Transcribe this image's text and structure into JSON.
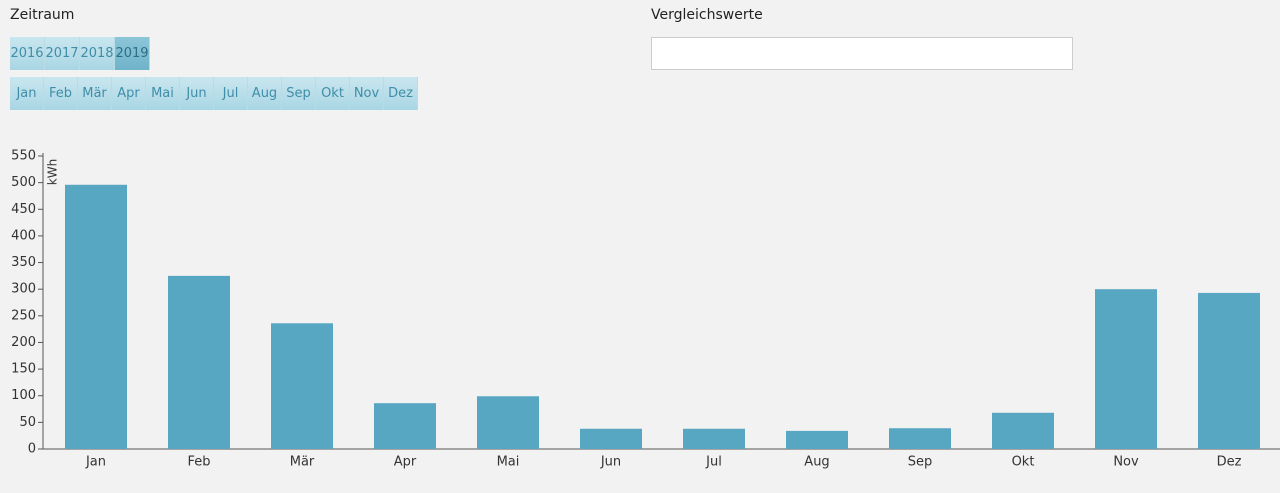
{
  "zeitraum": {
    "label": "Zeitraum",
    "years": [
      "2016",
      "2017",
      "2018",
      "2019"
    ],
    "months": [
      "Jan",
      "Feb",
      "Mär",
      "Apr",
      "Mai",
      "Jun",
      "Jul",
      "Aug",
      "Sep",
      "Okt",
      "Nov",
      "Dez"
    ]
  },
  "vergleichswerte": {
    "label": "Vergleichswerte"
  },
  "chart_data": {
    "type": "bar",
    "y_label": "kWh",
    "categories": [
      "Jan",
      "Feb",
      "Mär",
      "Apr",
      "Mai",
      "Jun",
      "Jul",
      "Aug",
      "Sep",
      "Okt",
      "Nov",
      "Dez"
    ],
    "values": [
      496,
      325,
      236,
      86,
      99,
      38,
      38,
      34,
      39,
      68,
      300,
      293
    ],
    "color": "#58a7c2",
    "ylim": [
      0,
      550
    ],
    "yticks": [
      0,
      50,
      100,
      150,
      200,
      250,
      300,
      350,
      400,
      450,
      500,
      550
    ]
  }
}
